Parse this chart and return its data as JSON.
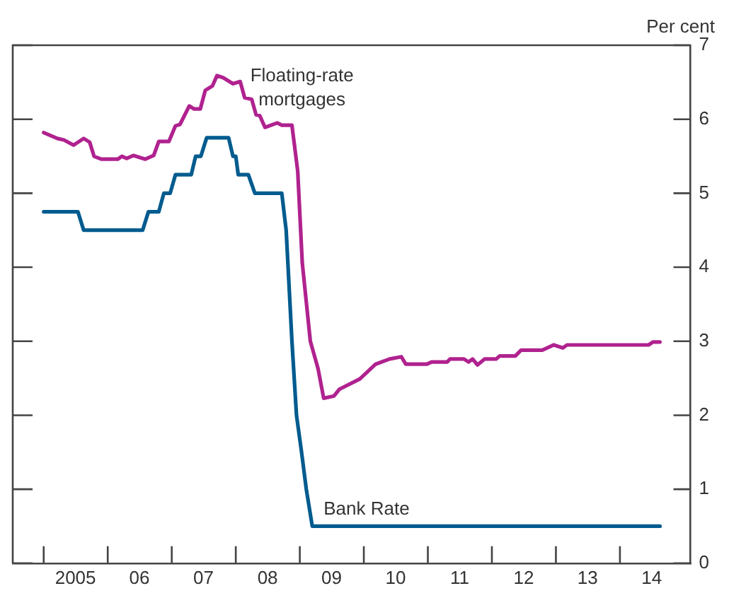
{
  "chart_data": {
    "type": "line",
    "ylabel": "Per cent",
    "xlim": [
      "2004-07-08",
      "2015-02-07"
    ],
    "xticks": [
      {
        "value": "2005-01-01",
        "label": null
      },
      {
        "value": "2005-07-01",
        "label": "2005"
      },
      {
        "value": "2006-01-01",
        "label": null
      },
      {
        "value": "2006-07-01",
        "label": "06"
      },
      {
        "value": "2007-01-01",
        "label": null
      },
      {
        "value": "2007-07-01",
        "label": "07"
      },
      {
        "value": "2008-01-01",
        "label": null
      },
      {
        "value": "2008-07-01",
        "label": "08"
      },
      {
        "value": "2009-01-01",
        "label": null
      },
      {
        "value": "2009-07-01",
        "label": "09"
      },
      {
        "value": "2010-01-01",
        "label": null
      },
      {
        "value": "2010-07-01",
        "label": "10"
      },
      {
        "value": "2011-01-01",
        "label": null
      },
      {
        "value": "2011-07-01",
        "label": "11"
      },
      {
        "value": "2012-01-01",
        "label": null
      },
      {
        "value": "2012-07-01",
        "label": "12"
      },
      {
        "value": "2013-01-01",
        "label": null
      },
      {
        "value": "2013-07-01",
        "label": "13"
      },
      {
        "value": "2014-01-01",
        "label": null
      },
      {
        "value": "2014-07-01",
        "label": "14"
      }
    ],
    "ylim": [
      0,
      7
    ],
    "yticks": [
      0,
      1,
      2,
      3,
      4,
      5,
      6,
      7
    ],
    "grid": false,
    "legend": false,
    "marker": "none",
    "line_style": "solid",
    "series": [
      {
        "name": "Floating-rate mortgages",
        "color": "#b0228f",
        "x": [
          "2005-01-01",
          "2005-03-20",
          "2005-04-26",
          "2005-06-20",
          "2005-08-17",
          "2005-09-20",
          "2005-10-15",
          "2005-11-25",
          "2006-02-28",
          "2006-03-23",
          "2006-04-19",
          "2006-05-28",
          "2006-08-03",
          "2006-09-20",
          "2006-10-19",
          "2006-12-16",
          "2007-01-22",
          "2007-02-17",
          "2007-04-11",
          "2007-05-07",
          "2007-06-13",
          "2007-07-11",
          "2007-08-21",
          "2007-09-16",
          "2007-10-22",
          "2007-12-16",
          "2008-01-26",
          "2008-02-21",
          "2008-04-01",
          "2008-04-26",
          "2008-05-17",
          "2008-06-16",
          "2008-08-25",
          "2008-09-20",
          "2008-11-17",
          "2008-12-20",
          "2009-01-15",
          "2009-03-02",
          "2009-04-15",
          "2009-05-17",
          "2009-07-15",
          "2009-08-14",
          "2009-12-09",
          "2010-03-09",
          "2010-05-28",
          "2010-08-03",
          "2010-08-28",
          "2010-12-27",
          "2011-01-22",
          "2011-04-22",
          "2011-05-07",
          "2011-07-26",
          "2011-08-21",
          "2011-09-13",
          "2011-10-11",
          "2011-11-21",
          "2012-01-26",
          "2012-02-14",
          "2012-05-14",
          "2012-06-16",
          "2012-10-15",
          "2012-12-20",
          "2013-02-10",
          "2013-03-05",
          "2014-06-13",
          "2014-07-08",
          "2014-08-17"
        ],
        "values": [
          5.82,
          5.74,
          5.72,
          5.65,
          5.74,
          5.69,
          5.5,
          5.46,
          5.46,
          5.5,
          5.47,
          5.51,
          5.46,
          5.51,
          5.7,
          5.7,
          5.91,
          5.93,
          6.18,
          6.14,
          6.14,
          6.39,
          6.45,
          6.59,
          6.56,
          6.48,
          6.51,
          6.29,
          6.27,
          6.06,
          6.05,
          5.89,
          5.95,
          5.92,
          5.92,
          5.3,
          4.06,
          3.0,
          2.63,
          2.23,
          2.26,
          2.35,
          2.49,
          2.69,
          2.76,
          2.79,
          2.69,
          2.69,
          2.72,
          2.72,
          2.76,
          2.76,
          2.72,
          2.76,
          2.68,
          2.76,
          2.76,
          2.8,
          2.8,
          2.88,
          2.88,
          2.95,
          2.91,
          2.95,
          2.95,
          2.99,
          2.99
        ]
      },
      {
        "name": "Bank Rate",
        "color": "#005b8e",
        "x": [
          "2005-01-01",
          "2005-07-15",
          "2005-08-17",
          "2006-07-19",
          "2006-08-21",
          "2006-10-19",
          "2006-11-17",
          "2006-12-23",
          "2007-01-22",
          "2007-04-22",
          "2007-05-17",
          "2007-06-16",
          "2007-07-19",
          "2007-11-21",
          "2007-12-16",
          "2008-01-01",
          "2008-01-15",
          "2008-03-13",
          "2008-04-19",
          "2008-09-20",
          "2008-10-15",
          "2008-11-17",
          "2008-12-13",
          "2009-01-11",
          "2009-02-07",
          "2009-03-13",
          "2014-08-17"
        ],
        "values": [
          4.75,
          4.75,
          4.5,
          4.5,
          4.75,
          4.75,
          5.0,
          5.0,
          5.25,
          5.25,
          5.5,
          5.5,
          5.75,
          5.75,
          5.5,
          5.5,
          5.25,
          5.25,
          5.0,
          5.0,
          4.5,
          3.0,
          2.0,
          1.5,
          1.0,
          0.5,
          0.5
        ]
      }
    ]
  }
}
